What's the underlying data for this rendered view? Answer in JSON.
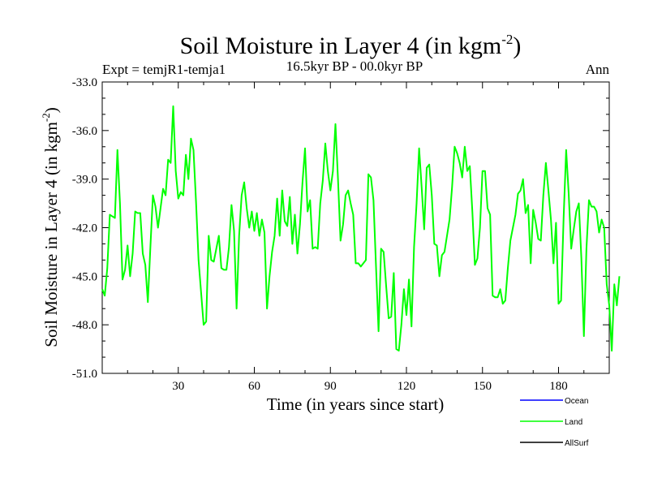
{
  "chart_data": {
    "type": "line",
    "title_main": "Soil Moisture in Layer 4 (in kgm",
    "title_sup": "-2",
    "title_close": ")",
    "subtitle_left": "Expt = temjR1-temja1",
    "subtitle_center": "16.5kyr BP - 00.0kyr BP",
    "subtitle_right": "Ann",
    "xlabel": "Time (in years since start)",
    "ylabel_main": "Soil Moisture in Layer 4 (in kgm",
    "ylabel_sup": "-2",
    "ylabel_close": ")",
    "xlim": [
      0,
      200
    ],
    "ylim": [
      -51,
      -33
    ],
    "x_ticks": [
      30,
      60,
      90,
      120,
      150,
      180
    ],
    "x_tick_labels": [
      "30",
      "60",
      "90",
      "120",
      "150",
      "180"
    ],
    "y_ticks": [
      -33,
      -36,
      -39,
      -42,
      -45,
      -48,
      -51
    ],
    "y_tick_labels": [
      "-33.0",
      "-36.0",
      "-39.0",
      "-42.0",
      "-45.0",
      "-48.0",
      "-51.0"
    ],
    "legend": [
      {
        "name": "Ocean",
        "color": "#0000ff"
      },
      {
        "name": "Land",
        "color": "#00ff00"
      },
      {
        "name": "AllSurf",
        "color": "#000000"
      }
    ],
    "series": [
      {
        "name": "Land",
        "color": "#00ff00",
        "x_start": 0,
        "x_step": 1,
        "values": [
          -45.8,
          -46.2,
          -44.5,
          -41.2,
          -41.3,
          -41.4,
          -37.2,
          -40.5,
          -45.2,
          -44.6,
          -43.1,
          -45.0,
          -43.6,
          -41.0,
          -41.1,
          -41.1,
          -43.6,
          -44.3,
          -46.6,
          -43.2,
          -40.0,
          -40.7,
          -42.0,
          -40.8,
          -39.6,
          -40.0,
          -37.8,
          -38.0,
          -34.5,
          -38.5,
          -40.2,
          -39.8,
          -40.0,
          -37.5,
          -39.0,
          -36.5,
          -37.2,
          -40.4,
          -44.0,
          -46.0,
          -48.0,
          -47.8,
          -42.5,
          -44.0,
          -44.1,
          -43.3,
          -42.5,
          -44.5,
          -44.6,
          -44.6,
          -43.2,
          -40.6,
          -42.2,
          -47.0,
          -42.5,
          -40.0,
          -39.2,
          -40.8,
          -42.0,
          -41.0,
          -42.2,
          -41.1,
          -42.5,
          -41.5,
          -42.3,
          -47.0,
          -45.0,
          -43.5,
          -42.5,
          -40.2,
          -42.5,
          -39.7,
          -41.6,
          -41.9,
          -40.1,
          -43.0,
          -41.2,
          -43.6,
          -41.8,
          -39.2,
          -37.1,
          -41.0,
          -40.3,
          -43.3,
          -43.2,
          -43.3,
          -40.5,
          -39.1,
          -36.8,
          -38.5,
          -39.7,
          -38.5,
          -35.6,
          -39.0,
          -42.8,
          -41.8,
          -40.0,
          -39.7,
          -40.5,
          -41.2,
          -44.2,
          -44.2,
          -44.4,
          -44.2,
          -44.0,
          -38.7,
          -38.9,
          -40.3,
          -44.4,
          -48.4,
          -43.3,
          -43.5,
          -45.6,
          -47.6,
          -47.5,
          -44.8,
          -49.5,
          -49.6,
          -48.0,
          -45.8,
          -47.4,
          -45.2,
          -48.1,
          -43.2,
          -40.5,
          -37.1,
          -39.5,
          -42.1,
          -38.3,
          -38.1,
          -40.0,
          -43.0,
          -43.1,
          -45.0,
          -43.7,
          -43.5,
          -42.5,
          -41.5,
          -39.5,
          -37.0,
          -37.4,
          -38.0,
          -38.9,
          -37.0,
          -38.5,
          -38.2,
          -41.0,
          -44.3,
          -43.9,
          -42.0,
          -38.5,
          -38.5,
          -40.8,
          -41.2,
          -46.2,
          -46.3,
          -46.3,
          -45.8,
          -46.7,
          -46.5,
          -44.5,
          -42.8,
          -42.0,
          -41.2,
          -39.9,
          -39.7,
          -39.0,
          -41.1,
          -40.6,
          -44.2,
          -40.9,
          -41.7,
          -42.7,
          -42.8,
          -40.0,
          -38.0,
          -39.7,
          -41.5,
          -44.2,
          -41.7,
          -46.7,
          -46.5,
          -41.4,
          -37.2,
          -39.9,
          -43.3,
          -42.1,
          -41.0,
          -40.5,
          -43.9,
          -48.7,
          -43.3,
          -40.3,
          -40.7,
          -40.7,
          -41.0,
          -42.3,
          -41.5,
          -42.0,
          -45.5,
          -46.8,
          -49.6,
          -45.5,
          -46.8,
          -45.0
        ]
      }
    ]
  }
}
